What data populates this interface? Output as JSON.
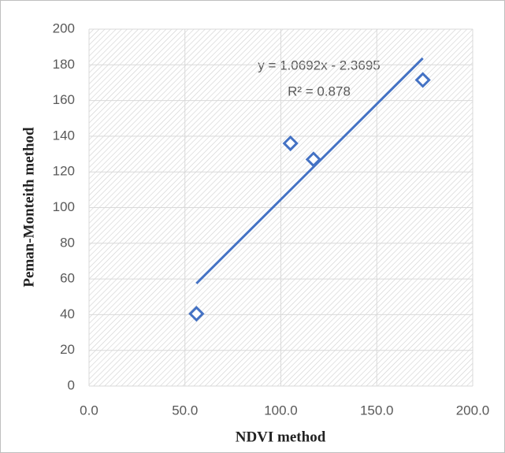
{
  "chart_data": {
    "type": "scatter",
    "x_label": "NDVI method",
    "y_label": "Peman-Monteith method",
    "annotations": [
      "y = 1.0692x - 2.3695",
      "R² = 0.878"
    ],
    "x": [
      56,
      105,
      117,
      174
    ],
    "values": [
      40.5,
      136,
      127,
      171.5
    ],
    "color": "#4472c4",
    "trendline": {
      "x": [
        56,
        174
      ],
      "y": [
        57.5,
        183.7
      ],
      "color": "#4472c4"
    },
    "xlim": [
      0,
      200
    ],
    "xticks": [
      {
        "value": 0,
        "label": "0.0"
      },
      {
        "value": 50,
        "label": "50.0"
      },
      {
        "value": 100,
        "label": "100.0"
      },
      {
        "value": 150,
        "label": "150.0"
      },
      {
        "value": 200,
        "label": "200.0"
      }
    ],
    "ylim": [
      0,
      200
    ],
    "yticks": [
      0,
      20,
      40,
      60,
      80,
      100,
      120,
      140,
      160,
      180,
      200
    ],
    "grid": true
  }
}
